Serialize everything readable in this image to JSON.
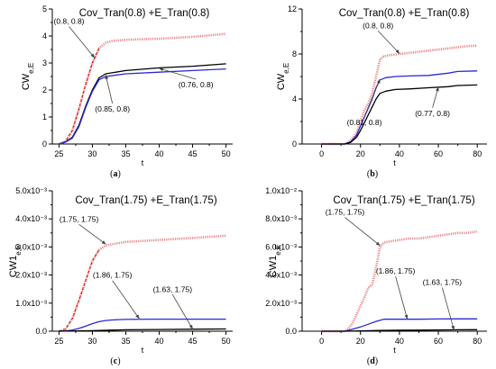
{
  "panels": [
    {
      "id": "a",
      "caption": "(a)",
      "chart_data": {
        "type": "line",
        "title": "Cov_Tran(0.8) +E_Tran(0.8)",
        "xlabel": "t",
        "ylabel": "CW",
        "ylabel_sub": "e,E",
        "xlim": [
          24,
          51
        ],
        "ylim": [
          0,
          5
        ],
        "xticks": [
          25,
          30,
          35,
          40,
          45,
          50
        ],
        "yticks": [
          0,
          1,
          2,
          3,
          4,
          5
        ],
        "tick_labels_x": [
          "25",
          "30",
          "35",
          "40",
          "45",
          "50"
        ],
        "tick_labels_y": [
          "0",
          "1",
          "2",
          "3",
          "4",
          "5"
        ],
        "series": [
          {
            "color": "#e8888a",
            "dashed_head": true,
            "x": [
              25,
              26,
              27,
              28,
              29,
              30,
              31,
              32,
              33,
              35,
              40,
              45,
              50
            ],
            "y": [
              0.0,
              0.1,
              0.5,
              1.3,
              2.2,
              3.0,
              3.55,
              3.75,
              3.82,
              3.86,
              3.9,
              3.97,
              4.08
            ]
          },
          {
            "color": "#000000",
            "x": [
              25,
              26,
              27,
              28,
              29,
              30,
              31,
              32,
              35,
              40,
              45,
              50
            ],
            "y": [
              0.0,
              0.08,
              0.25,
              0.7,
              1.4,
              2.0,
              2.45,
              2.6,
              2.72,
              2.82,
              2.88,
              2.97
            ]
          },
          {
            "color": "#2828d8",
            "x": [
              25,
              26,
              27,
              28,
              29,
              30,
              31,
              32,
              35,
              40,
              45,
              50
            ],
            "y": [
              0.0,
              0.07,
              0.22,
              0.65,
              1.35,
              1.95,
              2.38,
              2.5,
              2.6,
              2.66,
              2.72,
              2.78
            ]
          }
        ],
        "annotations": [
          {
            "text": "(0.8, 0.8)",
            "tx": 26.5,
            "ty": 4.45,
            "ax": 30.3,
            "ay": 3.2
          },
          {
            "text": "(0.76, 0.8)",
            "tx": 45.5,
            "ty": 2.1,
            "ax": 40,
            "ay": 2.8
          },
          {
            "text": "(0.85, 0.8)",
            "tx": 33,
            "ty": 1.2,
            "ax": 32,
            "ay": 2.55
          }
        ]
      }
    },
    {
      "id": "b",
      "caption": "(b)",
      "chart_data": {
        "type": "line",
        "title": "Cov_Tran(0.8) +E_Tran(0.8)",
        "xlabel": "t",
        "ylabel": "CW",
        "ylabel_sub": "e,E",
        "xlim": [
          -10,
          85
        ],
        "ylim": [
          0,
          12
        ],
        "xticks": [
          0,
          20,
          40,
          60,
          80
        ],
        "yticks": [
          0,
          4,
          8,
          12
        ],
        "tick_labels_x": [
          "0",
          "20",
          "40",
          "60",
          "80"
        ],
        "tick_labels_y": [
          "0",
          "4",
          "8",
          "12"
        ],
        "series": [
          {
            "color": "#e8888a",
            "x": [
              0,
              12,
              15,
              18,
              20,
              22,
              24,
              26,
              28,
              30,
              32,
              35,
              40,
              45,
              50,
              55,
              60,
              65,
              70,
              75,
              80
            ],
            "y": [
              0,
              0,
              0.3,
              1.0,
              2.0,
              3.0,
              3.6,
              4.5,
              6.0,
              7.5,
              7.8,
              7.9,
              8.0,
              8.1,
              8.2,
              8.3,
              8.4,
              8.5,
              8.6,
              8.7,
              8.75
            ]
          },
          {
            "color": "#2828d8",
            "x": [
              0,
              12,
              15,
              18,
              20,
              22,
              24,
              26,
              28,
              30,
              33,
              38,
              45,
              55,
              65,
              70,
              80
            ],
            "y": [
              0,
              0,
              0.2,
              0.8,
              1.6,
              2.4,
              3.2,
              4.0,
              5.0,
              5.7,
              5.9,
              6.0,
              6.05,
              6.1,
              6.3,
              6.45,
              6.5
            ]
          },
          {
            "color": "#000000",
            "x": [
              0,
              12,
              15,
              18,
              20,
              22,
              24,
              26,
              28,
              30,
              33,
              38,
              45,
              55,
              65,
              70,
              80
            ],
            "y": [
              0,
              0,
              0.15,
              0.6,
              1.2,
              1.9,
              2.6,
              3.3,
              4.0,
              4.5,
              4.7,
              4.85,
              4.9,
              5.0,
              5.1,
              5.2,
              5.25
            ]
          }
        ],
        "annotations": [
          {
            "text": "(0.8, 0.8)",
            "tx": 29,
            "ty": 10.3,
            "ax": 40,
            "ay": 8.05
          },
          {
            "text": "(0.81, 0.8)",
            "tx": 22,
            "ty": 1.7,
            "ax": 30,
            "ay": 5.75
          },
          {
            "text": "(0.77, 0.8)",
            "tx": 57,
            "ty": 2.5,
            "ax": 60,
            "ay": 5.05
          }
        ]
      }
    },
    {
      "id": "c",
      "caption": "(c)",
      "chart_data": {
        "type": "line",
        "title": "Cov_Tran(1.75) +E_Tran(1.75)",
        "xlabel": "t",
        "ylabel": "CW1",
        "ylabel_sub": "e,E",
        "xlim": [
          24,
          51
        ],
        "ylim": [
          0,
          0.005
        ],
        "xticks": [
          25,
          30,
          35,
          40,
          45,
          50
        ],
        "yticks": [
          0,
          0.001,
          0.002,
          0.003,
          0.004,
          0.005
        ],
        "tick_labels_x": [
          "25",
          "30",
          "35",
          "40",
          "45",
          "50"
        ],
        "tick_labels_y": [
          "0.0",
          "1.0x10⁻³",
          "2.0x10⁻³",
          "3.0x10⁻³",
          "4.0x10⁻³",
          "5.0x10⁻³"
        ],
        "series": [
          {
            "color": "#e8888a",
            "dashed_head": true,
            "x": [
              25,
              26,
              27,
              28,
              29,
              30,
              31,
              32,
              33,
              35,
              40,
              45,
              50
            ],
            "y": [
              0.0,
              8e-05,
              0.00045,
              0.0011,
              0.0018,
              0.0025,
              0.0029,
              0.00305,
              0.0031,
              0.00318,
              0.00325,
              0.00332,
              0.0034
            ]
          },
          {
            "color": "#2828d8",
            "x": [
              25,
              26,
              27,
              28,
              29,
              30,
              31,
              32,
              33,
              35,
              40,
              45,
              50
            ],
            "y": [
              0,
              1e-05,
              4e-05,
              0.0001,
              0.00018,
              0.00027,
              0.00034,
              0.00038,
              0.0004,
              0.00042,
              0.00043,
              0.00043,
              0.00043
            ]
          },
          {
            "color": "#000000",
            "x": [
              25,
              30,
              35,
              40,
              45,
              50
            ],
            "y": [
              0,
              2e-05,
              5e-05,
              6e-05,
              7e-05,
              8e-05
            ]
          }
        ],
        "annotations": [
          {
            "text": "(1.75, 1.75)",
            "tx": 28,
            "ty": 0.0039,
            "ax": 32,
            "ay": 0.0031
          },
          {
            "text": "(1.86, 1.75)",
            "tx": 33,
            "ty": 0.0019,
            "ax": 37,
            "ay": 0.00045
          },
          {
            "text": "(1.63, 1.75)",
            "tx": 42,
            "ty": 0.0014,
            "ax": 45,
            "ay": 8e-05
          }
        ]
      }
    },
    {
      "id": "d",
      "caption": "(d)",
      "chart_data": {
        "type": "line",
        "title": "Cov_Tran(1.75) +E_Tran(1.75)",
        "xlabel": "t",
        "ylabel": "CW1",
        "ylabel_sub": "e,E",
        "xlim": [
          -10,
          85
        ],
        "ylim": [
          0,
          0.01
        ],
        "xticks": [
          0,
          20,
          40,
          60,
          80
        ],
        "yticks": [
          0,
          0.002,
          0.004,
          0.006,
          0.008,
          0.01
        ],
        "tick_labels_x": [
          "0",
          "20",
          "40",
          "60",
          "80"
        ],
        "tick_labels_y": [
          "0.0",
          "2.0x10⁻³",
          "4.0x10⁻³",
          "6.0x10⁻³",
          "8.0x10⁻³",
          "1.0x10⁻²"
        ],
        "series": [
          {
            "color": "#e8888a",
            "x": [
              0,
              12,
              14,
              16,
              18,
              20,
              22,
              24,
              26,
              28,
              30,
              32,
              35,
              40,
              45,
              50,
              55,
              60,
              65,
              70,
              75,
              80
            ],
            "y": [
              0,
              0,
              0.0002,
              0.0006,
              0.0012,
              0.0018,
              0.0024,
              0.0031,
              0.0033,
              0.0045,
              0.006,
              0.0063,
              0.0064,
              0.0065,
              0.0066,
              0.0066,
              0.0067,
              0.0068,
              0.0069,
              0.007,
              0.007,
              0.0071
            ]
          },
          {
            "color": "#2828d8",
            "x": [
              0,
              12,
              16,
              20,
              24,
              28,
              32,
              40,
              50,
              60,
              70,
              80
            ],
            "y": [
              0,
              0,
              0.00015,
              0.0003,
              0.0005,
              0.0007,
              0.00085,
              0.00085,
              0.00085,
              0.00087,
              0.00088,
              0.00088
            ]
          },
          {
            "color": "#000000",
            "x": [
              0,
              12,
              20,
              30,
              40,
              50,
              60,
              70,
              80
            ],
            "y": [
              0,
              0,
              2e-05,
              5e-05,
              7e-05,
              8e-05,
              9e-05,
              0.0001,
              0.00011
            ]
          }
        ],
        "annotations": [
          {
            "text": "(1.75, 1.75)",
            "tx": 12,
            "ty": 0.0083,
            "ax": 30,
            "ay": 0.0061
          },
          {
            "text": "(1.86, 1.75)",
            "tx": 38,
            "ty": 0.0041,
            "ax": 44,
            "ay": 0.00088
          },
          {
            "text": "(1.63, 1.75)",
            "tx": 62,
            "ty": 0.0033,
            "ax": 68,
            "ay": 0.0001
          }
        ]
      }
    }
  ]
}
